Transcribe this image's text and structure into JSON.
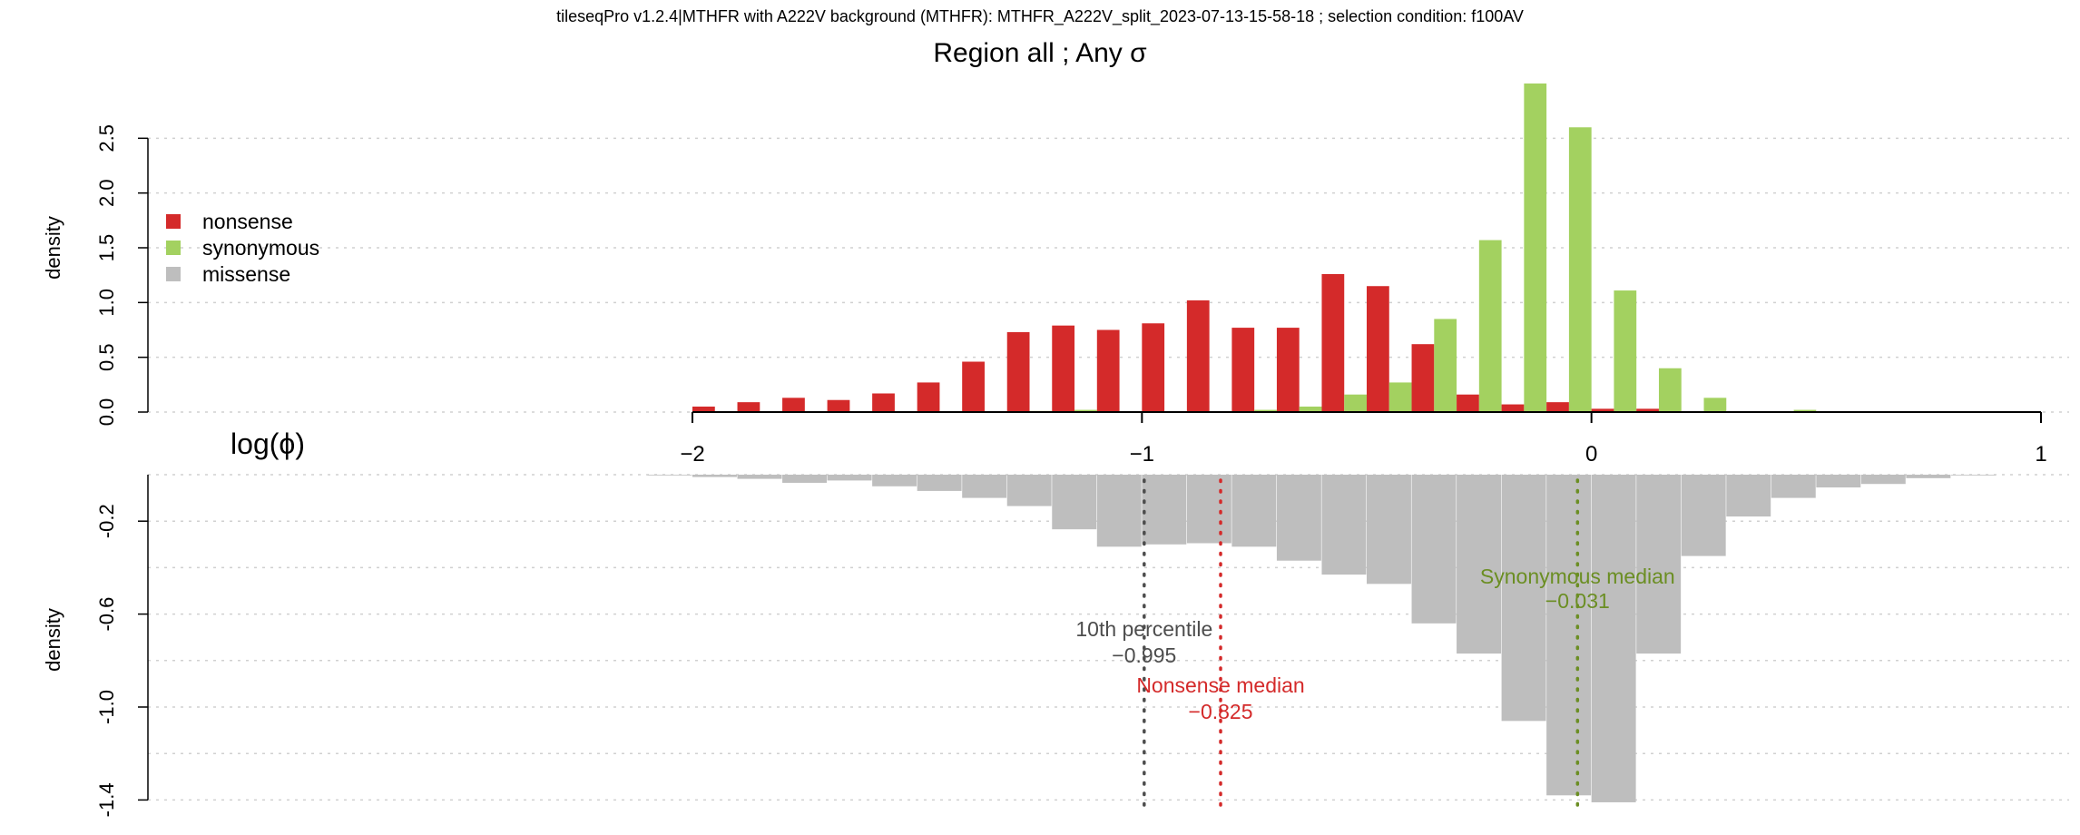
{
  "chart_data": [
    {
      "type": "bar",
      "supertitle": "tileseqPro v1.2.4|MTHFR with A222V background (MTHFR): MTHFR_A222V_split_2023-07-13-15-58-18 ; selection condition: f100AV",
      "title": "Region all ; Any σ",
      "ylabel": "density",
      "xlabel": "log(ϕ)",
      "ylim": [
        0,
        3.0
      ],
      "y_ticks": [
        "0.0",
        "0.5",
        "1.0",
        "1.5",
        "2.0",
        "2.5"
      ],
      "xlim": [
        -2,
        1
      ],
      "x_ticks": [
        "−2",
        "−1",
        "0",
        "1"
      ],
      "bin_width": 0.1,
      "bin_starts": [
        -2.0,
        -1.9,
        -1.8,
        -1.7,
        -1.6,
        -1.5,
        -1.4,
        -1.3,
        -1.2,
        -1.1,
        -1.0,
        -0.9,
        -0.8,
        -0.7,
        -0.6,
        -0.5,
        -0.4,
        -0.3,
        -0.2,
        -0.1,
        0.0,
        0.1,
        0.2,
        0.3,
        0.4,
        0.5,
        0.6,
        0.7,
        0.8,
        0.9
      ],
      "legend_position": "left",
      "series": [
        {
          "name": "nonsense",
          "color": "#d42a2a",
          "values": [
            0.05,
            0.09,
            0.13,
            0.11,
            0.17,
            0.27,
            0.46,
            0.73,
            0.79,
            0.75,
            0.81,
            1.02,
            0.77,
            0.77,
            1.26,
            1.15,
            0.62,
            0.16,
            0.07,
            0.09,
            0.03,
            0.03,
            0,
            0,
            0,
            0,
            0,
            0,
            0,
            0
          ]
        },
        {
          "name": "synonymous",
          "color": "#a3d160",
          "values": [
            0,
            0,
            0,
            0,
            0,
            0,
            0,
            0.01,
            0.02,
            0,
            0,
            0,
            0.02,
            0.05,
            0.16,
            0.27,
            0.85,
            1.57,
            3.0,
            2.6,
            1.11,
            0.4,
            0.13,
            0,
            0.02,
            0,
            0,
            0,
            0,
            0
          ]
        },
        {
          "name": "missense",
          "color": "#bebebe",
          "values": []
        }
      ]
    },
    {
      "type": "bar",
      "ylabel": "density",
      "ylim": [
        -1.4,
        0
      ],
      "y_ticks": [
        "-0.2",
        "-0.6",
        "-1.0",
        "-1.4"
      ],
      "xlim": [
        -2,
        1
      ],
      "bin_width": 0.1,
      "bin_starts": [
        -2.1,
        -2.0,
        -1.9,
        -1.8,
        -1.7,
        -1.6,
        -1.5,
        -1.4,
        -1.3,
        -1.2,
        -1.1,
        -1.0,
        -0.9,
        -0.8,
        -0.7,
        -0.6,
        -0.5,
        -0.4,
        -0.3,
        -0.2,
        -0.1,
        0.0,
        0.1,
        0.2,
        0.3,
        0.4,
        0.5,
        0.6,
        0.7,
        0.8
      ],
      "series": [
        {
          "name": "missense",
          "color": "#bebebe",
          "values": [
            -0.003,
            -0.01,
            -0.018,
            -0.035,
            -0.025,
            -0.05,
            -0.07,
            -0.1,
            -0.135,
            -0.235,
            -0.31,
            -0.3,
            -0.295,
            -0.31,
            -0.37,
            -0.43,
            -0.47,
            -0.64,
            -0.77,
            -1.06,
            -1.38,
            -1.41,
            -0.77,
            -0.35,
            -0.18,
            -0.1,
            -0.055,
            -0.04,
            -0.015,
            -0.003
          ]
        }
      ],
      "annotations": [
        {
          "x": -0.995,
          "label": "10th percentile",
          "value": "−0.995",
          "color": "#4d4d4d"
        },
        {
          "x": -0.825,
          "label": "Nonsense median",
          "value": "−0.825",
          "color": "#d42a2a"
        },
        {
          "x": -0.031,
          "label": "Synonymous median",
          "value": "−0.031",
          "color": "#6b8e23"
        }
      ]
    }
  ]
}
